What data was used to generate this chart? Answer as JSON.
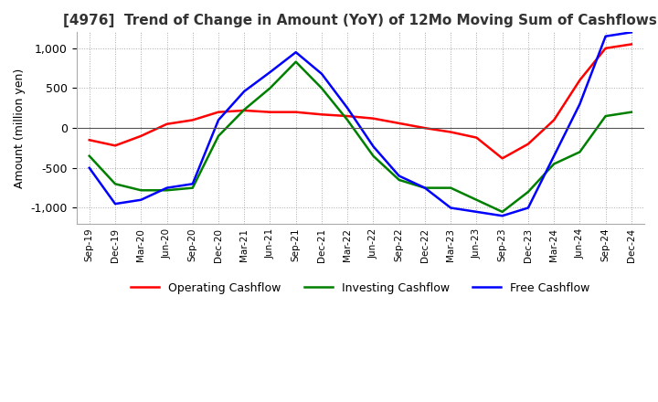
{
  "title": "[4976]  Trend of Change in Amount (YoY) of 12Mo Moving Sum of Cashflows",
  "ylabel": "Amount (million yen)",
  "ylim": [
    -1200,
    1200
  ],
  "yticks": [
    -1000,
    -500,
    0,
    500,
    1000
  ],
  "x_labels": [
    "Sep-19",
    "Dec-19",
    "Mar-20",
    "Jun-20",
    "Sep-20",
    "Dec-20",
    "Mar-21",
    "Jun-21",
    "Sep-21",
    "Dec-21",
    "Mar-22",
    "Jun-22",
    "Sep-22",
    "Dec-22",
    "Mar-23",
    "Jun-23",
    "Sep-23",
    "Dec-23",
    "Mar-24",
    "Jun-24",
    "Sep-24",
    "Dec-24"
  ],
  "operating": [
    -150,
    -220,
    -100,
    50,
    100,
    200,
    220,
    200,
    200,
    170,
    150,
    120,
    60,
    0,
    -50,
    -120,
    -380,
    -200,
    100,
    600,
    1000,
    1050
  ],
  "investing": [
    -350,
    -700,
    -780,
    -780,
    -750,
    -100,
    230,
    500,
    830,
    500,
    100,
    -350,
    -650,
    -750,
    -750,
    -900,
    -1050,
    -800,
    -450,
    -300,
    150,
    200
  ],
  "free": [
    -500,
    -950,
    -900,
    -750,
    -700,
    100,
    460,
    700,
    950,
    680,
    250,
    -230,
    -600,
    -750,
    -1000,
    -1050,
    -1100,
    -1000,
    -350,
    300,
    1150,
    1200
  ],
  "colors": {
    "operating": "#ff0000",
    "investing": "#008000",
    "free": "#0000ff"
  },
  "legend_labels": [
    "Operating Cashflow",
    "Investing Cashflow",
    "Free Cashflow"
  ],
  "background_color": "#ffffff",
  "grid_color": "#aaaaaa"
}
